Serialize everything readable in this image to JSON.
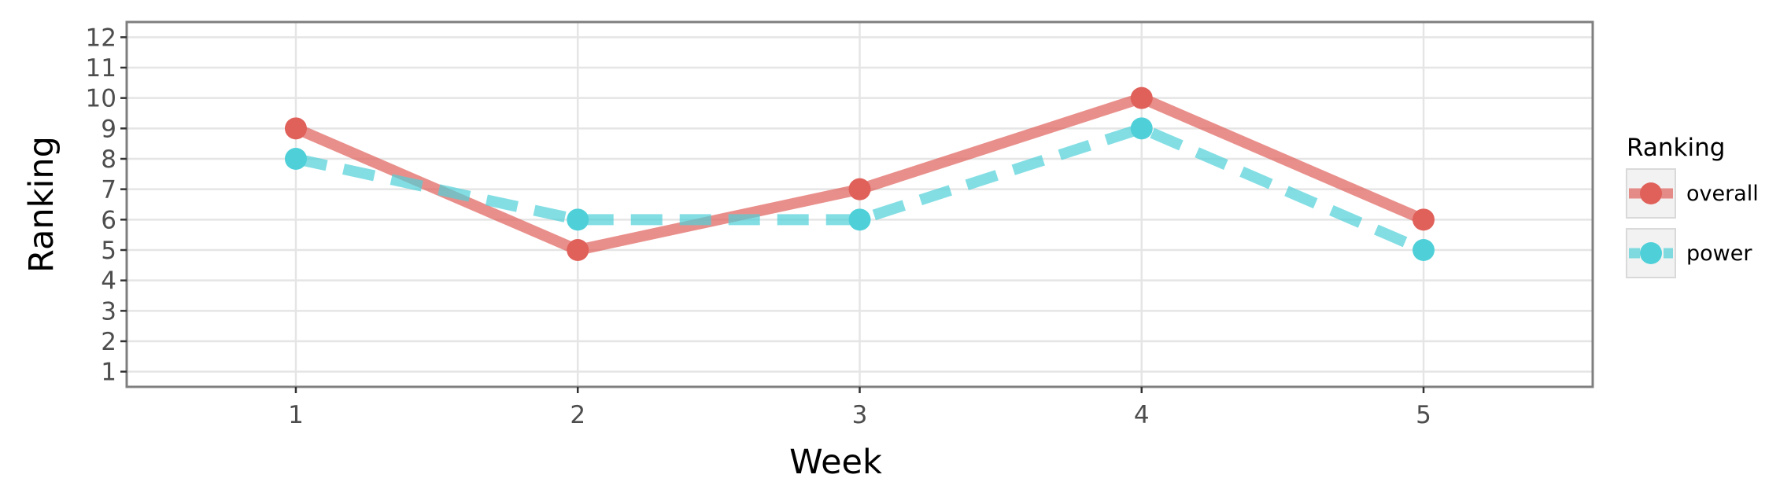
{
  "chart_data": {
    "type": "line",
    "xlabel": "Week",
    "ylabel": "Ranking",
    "x": [
      1,
      2,
      3,
      4,
      5
    ],
    "x_ticks": [
      "1",
      "2",
      "3",
      "4",
      "5"
    ],
    "xlim": [
      0.4,
      5.6
    ],
    "y_ticks": [
      "1",
      "2",
      "3",
      "4",
      "5",
      "6",
      "7",
      "8",
      "9",
      "10",
      "11",
      "12"
    ],
    "ylim": [
      12.5,
      0.5
    ],
    "y_reversed": true,
    "grid": true,
    "legend": {
      "title": "Ranking",
      "position": "right"
    },
    "series": [
      {
        "name": "overall",
        "values": [
          9,
          5,
          7,
          10,
          6
        ],
        "color": "#e0605a",
        "line_style": "solid"
      },
      {
        "name": "power",
        "values": [
          8,
          6,
          6,
          9,
          5
        ],
        "color": "#4fd0d8",
        "line_style": "dashed"
      }
    ]
  }
}
